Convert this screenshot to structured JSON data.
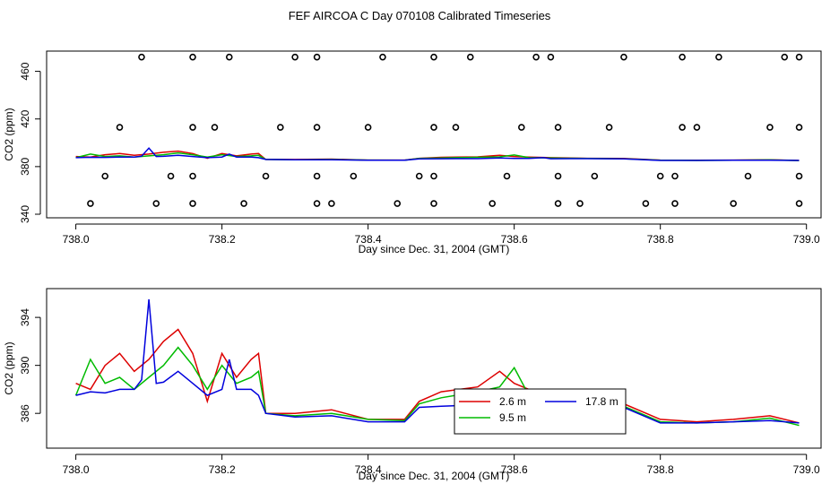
{
  "title": "FEF AIRCOA C  Day 070108  Calibrated Timeseries",
  "colors": {
    "s1": "#dd0000",
    "s2": "#00bb00",
    "s3": "#0000dd",
    "cal": "#000000"
  },
  "chart_data": [
    {
      "type": "line",
      "title": "FEF AIRCOA C  Day 070108  Calibrated Timeseries",
      "xlabel": "Day since Dec. 31, 2004 (GMT)",
      "ylabel": "CO2 (ppm)",
      "xlim": [
        737.96,
        739.02
      ],
      "ylim": [
        337,
        477
      ],
      "xticks": [
        "738.0",
        "738.2",
        "738.4",
        "738.6",
        "738.8",
        "739.0"
      ],
      "yticks": [
        "340",
        "380",
        "420",
        "460"
      ],
      "calibration_points": {
        "x460": [
          738.09,
          738.16,
          738.21,
          738.3,
          738.33,
          738.42,
          738.49,
          738.54,
          738.63,
          738.65,
          738.75,
          738.83,
          738.88,
          738.97,
          738.99
        ],
        "x410": [
          738.06,
          738.16,
          738.19,
          738.28,
          738.33,
          738.4,
          738.49,
          738.52,
          738.61,
          738.66,
          738.73,
          738.83,
          738.85,
          738.95,
          738.99
        ],
        "x370": [
          738.04,
          738.13,
          738.16,
          738.26,
          738.33,
          738.38,
          738.47,
          738.49,
          738.59,
          738.66,
          738.71,
          738.8,
          738.82,
          738.92,
          738.99
        ],
        "x350": [
          738.02,
          738.11,
          738.16,
          738.23,
          738.33,
          738.35,
          738.44,
          738.49,
          738.57,
          738.66,
          738.69,
          738.78,
          738.82,
          738.9,
          738.99
        ],
        "y": {
          "x460": 472,
          "x410": 413,
          "x370": 372,
          "x350": 349
        }
      }
    },
    {
      "type": "line",
      "xlabel": "Day since Dec. 31, 2004 (GMT)",
      "ylabel": "CO2 (ppm)",
      "xlim": [
        737.96,
        739.02
      ],
      "ylim": [
        383.1,
        396.4
      ],
      "xticks": [
        "738.0",
        "738.2",
        "738.4",
        "738.6",
        "738.8",
        "739.0"
      ],
      "yticks": [
        "386",
        "390",
        "394"
      ],
      "series": [
        {
          "name": "2.6 m",
          "color": "#dd0000",
          "x": [
            738.0,
            738.02,
            738.04,
            738.06,
            738.08,
            738.1,
            738.12,
            738.14,
            738.16,
            738.18,
            738.2,
            738.22,
            738.24,
            738.25,
            738.26,
            738.3,
            738.35,
            738.4,
            738.45,
            738.47,
            738.5,
            738.55,
            738.58,
            738.6,
            738.62,
            738.65,
            738.7,
            738.75,
            738.8,
            738.85,
            738.9,
            738.95,
            738.99
          ],
          "y": [
            388.5,
            388.0,
            390.0,
            391.0,
            389.5,
            390.5,
            392.0,
            393.0,
            391.0,
            387.0,
            391.0,
            389.0,
            390.5,
            391.0,
            386.0,
            386.0,
            386.3,
            385.5,
            385.5,
            387.0,
            387.8,
            388.2,
            389.5,
            388.5,
            388.0,
            387.5,
            387.0,
            386.8,
            385.5,
            385.3,
            385.5,
            385.8,
            385.2
          ]
        },
        {
          "name": "9.5 m",
          "color": "#00bb00",
          "x": [
            738.0,
            738.02,
            738.04,
            738.06,
            738.08,
            738.1,
            738.12,
            738.14,
            738.16,
            738.18,
            738.2,
            738.22,
            738.24,
            738.25,
            738.26,
            738.3,
            738.35,
            738.4,
            738.45,
            738.47,
            738.5,
            738.55,
            738.58,
            738.6,
            738.62,
            738.65,
            738.7,
            738.75,
            738.8,
            738.85,
            738.9,
            738.95,
            738.99
          ],
          "y": [
            387.5,
            390.5,
            388.5,
            389.0,
            388.0,
            389.0,
            390.0,
            391.5,
            390.0,
            388.0,
            390.0,
            388.5,
            389.0,
            389.5,
            386.0,
            385.8,
            386.0,
            385.5,
            385.4,
            386.8,
            387.3,
            387.8,
            388.2,
            389.8,
            387.5,
            387.2,
            386.8,
            386.6,
            385.3,
            385.2,
            385.3,
            385.6,
            385.0
          ]
        },
        {
          "name": "17.8 m",
          "color": "#0000dd",
          "x": [
            738.0,
            738.02,
            738.04,
            738.06,
            738.08,
            738.09,
            738.1,
            738.11,
            738.12,
            738.14,
            738.16,
            738.18,
            738.2,
            738.21,
            738.22,
            738.24,
            738.25,
            738.26,
            738.3,
            738.35,
            738.4,
            738.45,
            738.47,
            738.5,
            738.55,
            738.58,
            738.6,
            738.62,
            738.64,
            738.65,
            738.7,
            738.75,
            738.8,
            738.85,
            738.9,
            738.95,
            738.99
          ],
          "y": [
            387.5,
            387.8,
            387.7,
            388.0,
            388.0,
            388.8,
            395.5,
            388.5,
            388.6,
            389.5,
            388.5,
            387.5,
            388.0,
            390.5,
            388.0,
            388.0,
            387.5,
            386.0,
            385.7,
            385.8,
            385.3,
            385.3,
            386.5,
            386.6,
            386.7,
            387.3,
            386.9,
            386.8,
            387.5,
            386.6,
            386.7,
            386.5,
            385.2,
            385.2,
            385.3,
            385.4,
            385.2
          ]
        }
      ],
      "legend": [
        "2.6 m",
        "9.5 m",
        "17.8 m"
      ],
      "legend_position": "bottom-center"
    }
  ]
}
